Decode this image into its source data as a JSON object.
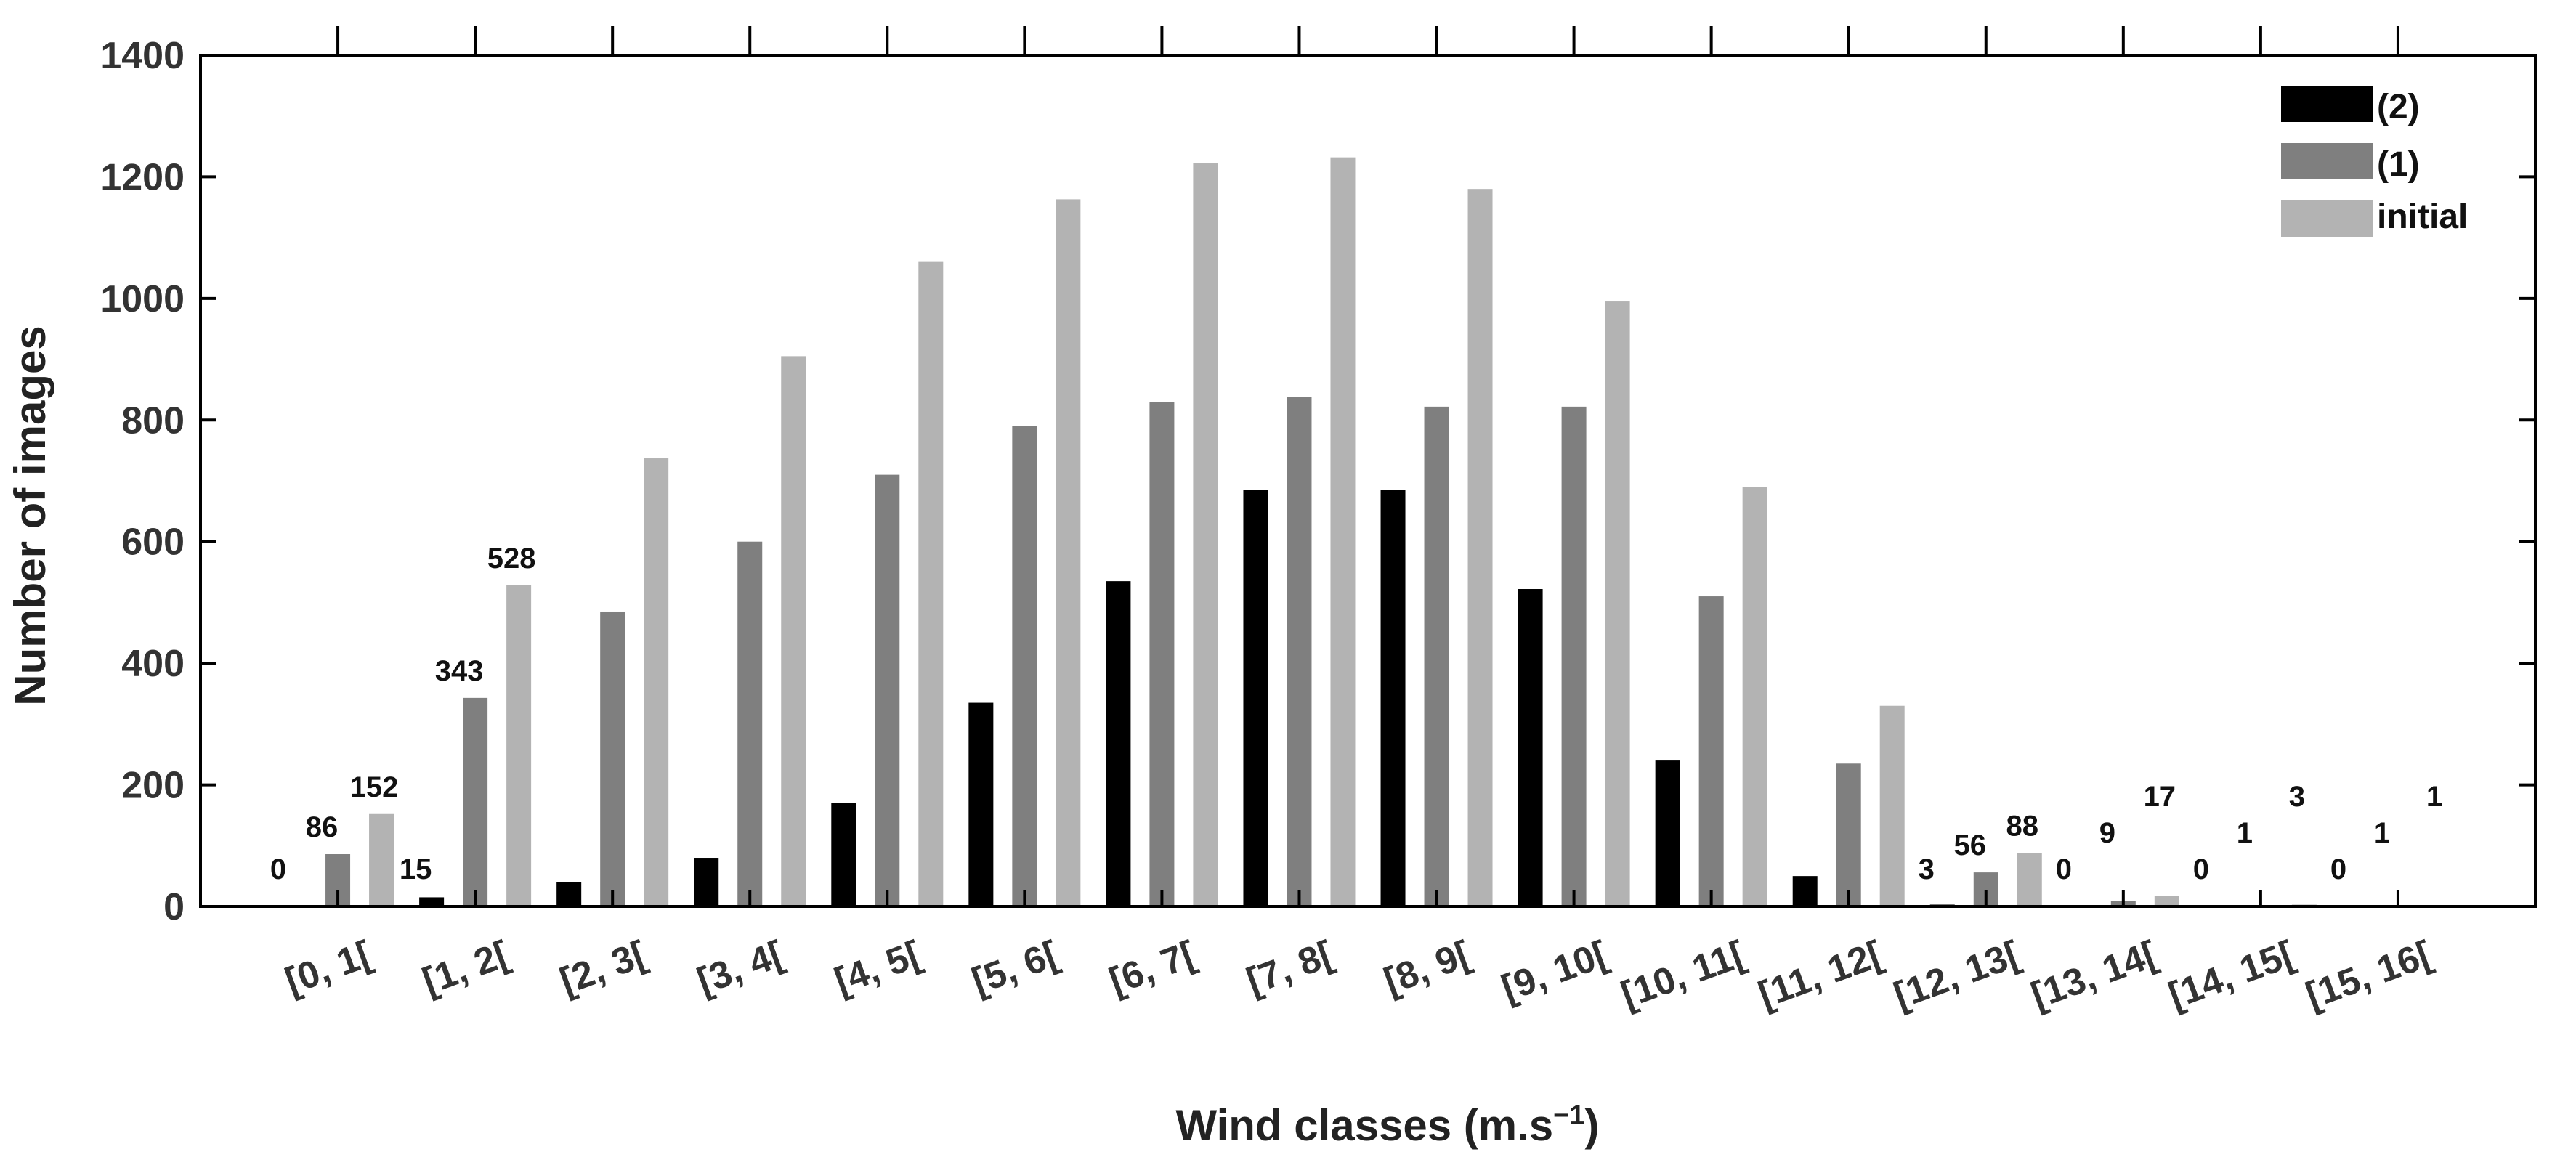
{
  "chart_data": {
    "type": "bar",
    "title": "",
    "xlabel": "Wind classes (m.s",
    "xlabel_superscript": "−1",
    "xlabel_suffix": ")",
    "ylabel": "Number of images",
    "ylim": [
      0,
      1400
    ],
    "yticks": [
      "0",
      "200",
      "400",
      "600",
      "800",
      "1000",
      "1200",
      "1400"
    ],
    "grid": false,
    "legend_position": "top-right",
    "categories": [
      "[0, 1[",
      "[1, 2[",
      "[2, 3[",
      "[3, 4[",
      "[4, 5[",
      "[5, 6[",
      "[6, 7[",
      "[7, 8[",
      "[8, 9[",
      "[9, 10[",
      "[10, 11[",
      "[11, 12[",
      "[12, 13[",
      "[13, 14[",
      "[14, 15[",
      "[15, 16["
    ],
    "series": [
      {
        "name": "(2)",
        "color": "#000000",
        "values": [
          0,
          15,
          40,
          80,
          170,
          335,
          535,
          685,
          685,
          522,
          240,
          50,
          3,
          0,
          0,
          0
        ]
      },
      {
        "name": "(1)",
        "color": "#7f7f7f",
        "values": [
          86,
          343,
          485,
          600,
          710,
          790,
          830,
          838,
          822,
          822,
          510,
          235,
          56,
          9,
          1,
          1
        ]
      },
      {
        "name": "initial",
        "color": "#b3b3b3",
        "values": [
          152,
          528,
          737,
          905,
          1060,
          1163,
          1222,
          1232,
          1180,
          995,
          690,
          330,
          88,
          17,
          3,
          1
        ]
      }
    ],
    "data_labels": [
      {
        "category": 0,
        "series": 0,
        "text": "0"
      },
      {
        "category": 0,
        "series": 1,
        "text": "86"
      },
      {
        "category": 0,
        "series": 2,
        "text": "152"
      },
      {
        "category": 1,
        "series": 0,
        "text": "15"
      },
      {
        "category": 1,
        "series": 1,
        "text": "343"
      },
      {
        "category": 1,
        "series": 2,
        "text": "528"
      },
      {
        "category": 12,
        "series": 0,
        "text": "3"
      },
      {
        "category": 12,
        "series": 1,
        "text": "56"
      },
      {
        "category": 12,
        "series": 2,
        "text": "88"
      },
      {
        "category": 13,
        "series": 0,
        "text": "0"
      },
      {
        "category": 13,
        "series": 1,
        "text": "9"
      },
      {
        "category": 13,
        "series": 2,
        "text": "17"
      },
      {
        "category": 14,
        "series": 0,
        "text": "0"
      },
      {
        "category": 14,
        "series": 1,
        "text": "1"
      },
      {
        "category": 14,
        "series": 2,
        "text": "3"
      },
      {
        "category": 15,
        "series": 0,
        "text": "0"
      },
      {
        "category": 15,
        "series": 1,
        "text": "1"
      },
      {
        "category": 15,
        "series": 2,
        "text": "1"
      }
    ]
  }
}
